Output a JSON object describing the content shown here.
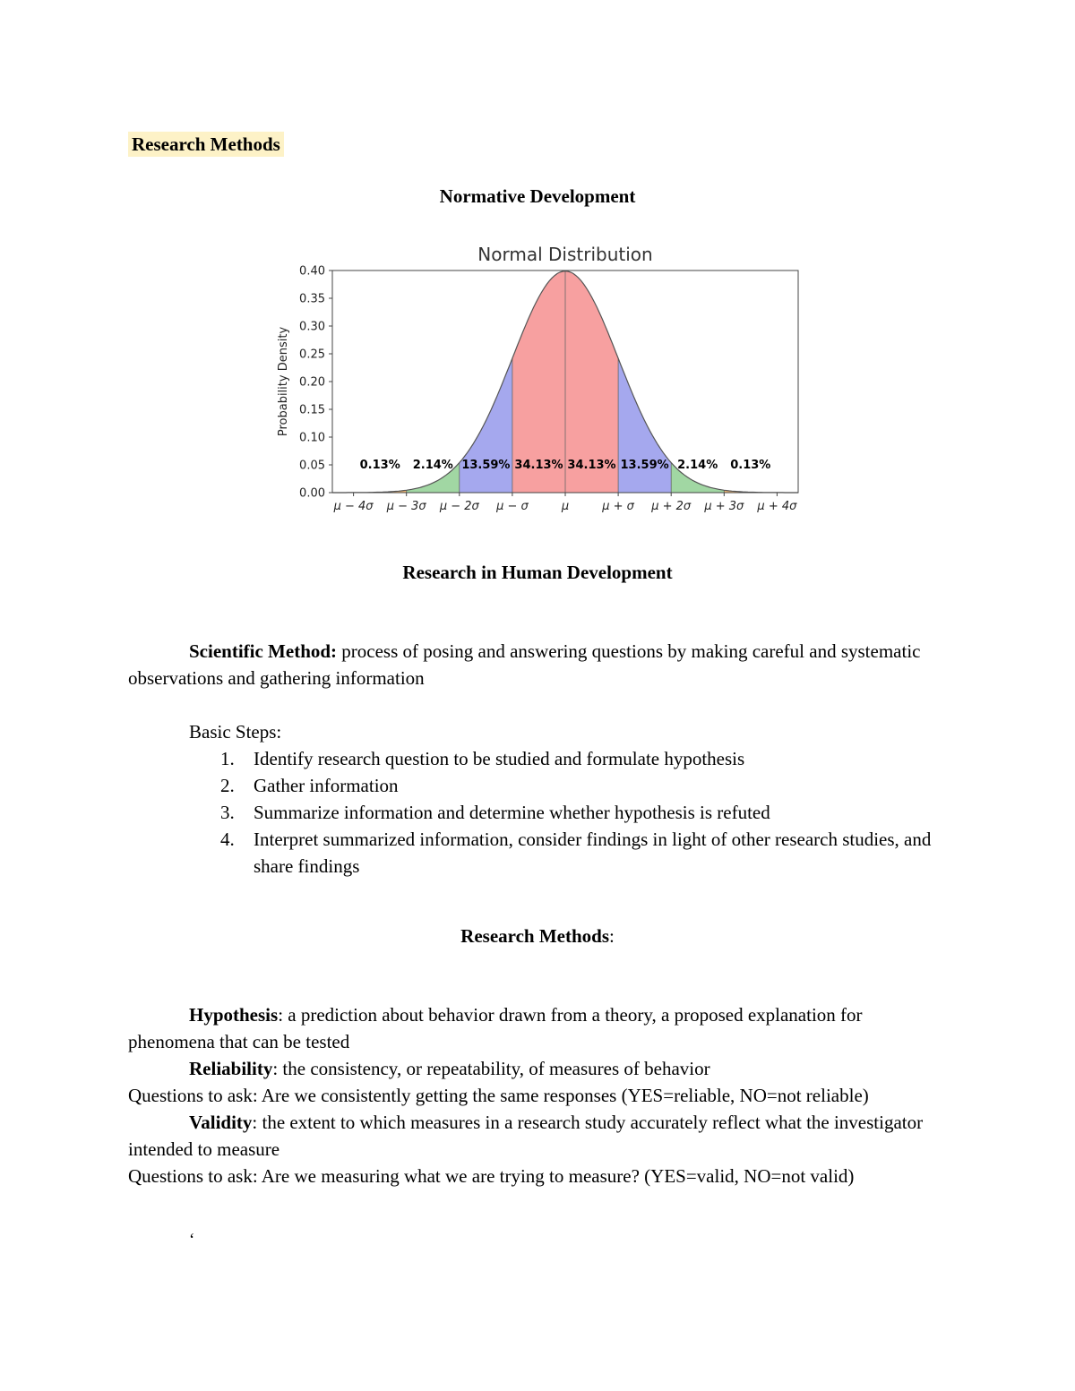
{
  "colors": {
    "highlight": "#fdf2c7"
  },
  "doc": {
    "page_tag": "Research Methods",
    "heading_normative": "Normative Development",
    "heading_rhd": "Research in Human Development",
    "scientific_method_term": "Scientific Method:",
    "scientific_method_def": " process of posing and answering questions by making careful and systematic observations and gathering information",
    "basic_steps_label": "Basic Steps:",
    "basic_steps": [
      {
        "num": "1.",
        "text": "Identify research question to be studied and formulate hypothesis"
      },
      {
        "num": "2.",
        "text": "Gather information"
      },
      {
        "num": "3.",
        "text": "Summarize information and determine whether hypothesis is refuted"
      },
      {
        "num": "4.",
        "text": "Interpret summarized information, consider findings in light of other research studies, and share findings"
      }
    ],
    "heading_methods": "Research Methods",
    "heading_methods_suffix": ":",
    "hypothesis_term": "Hypothesis",
    "hypothesis_def": ": a prediction about behavior drawn from a theory, a proposed explanation for phenomena that can be tested",
    "reliability_term": "Reliability",
    "reliability_def": ": the consistency, or repeatability, of measures of behavior",
    "reliability_question": "Questions to ask: Are we consistently getting the same responses (YES=reliable, NO=not reliable)",
    "validity_term": "Validity",
    "validity_def": ": the extent to which measures in a research study accurately reflect what the investigator intended to measure",
    "validity_question": "Questions to ask: Are we measuring what we are trying to measure? (YES=valid, NO=not valid)",
    "stray_mark": "‘"
  },
  "chart_data": {
    "type": "area",
    "title": "Normal Distribution",
    "ylabel": "Probability Density",
    "xlabel": "",
    "distribution": "standard normal pdf",
    "ylim": [
      0,
      0.4
    ],
    "yticks": [
      0,
      0.05,
      0.1,
      0.15,
      0.2,
      0.25,
      0.3,
      0.35,
      0.4
    ],
    "x_range": [
      -4.4,
      4.4
    ],
    "xtick_values": [
      -4,
      -3,
      -2,
      -1,
      0,
      1,
      2,
      3,
      4
    ],
    "xtick_labels": [
      "μ − 4σ",
      "μ − 3σ",
      "μ − 2σ",
      "μ − σ",
      "μ",
      "μ + σ",
      "μ + 2σ",
      "μ + 3σ",
      "μ + 4σ"
    ],
    "label_y": 0.05,
    "grid": false,
    "legend": "none",
    "segments": [
      {
        "from": -4,
        "to": -3,
        "percent": "0.13%",
        "color": "#f5a13d"
      },
      {
        "from": -3,
        "to": -2,
        "percent": "2.14%",
        "color": "#7dc87f"
      },
      {
        "from": -2,
        "to": -1,
        "percent": "13.59%",
        "color": "#8287e8"
      },
      {
        "from": -1,
        "to": 0,
        "percent": "34.13%",
        "color": "#f47c7c"
      },
      {
        "from": 0,
        "to": 1,
        "percent": "34.13%",
        "color": "#f47c7c"
      },
      {
        "from": 1,
        "to": 2,
        "percent": "13.59%",
        "color": "#8287e8"
      },
      {
        "from": 2,
        "to": 3,
        "percent": "2.14%",
        "color": "#7dc87f"
      },
      {
        "from": 3,
        "to": 4,
        "percent": "0.13%",
        "color": "#f5a13d"
      }
    ]
  }
}
